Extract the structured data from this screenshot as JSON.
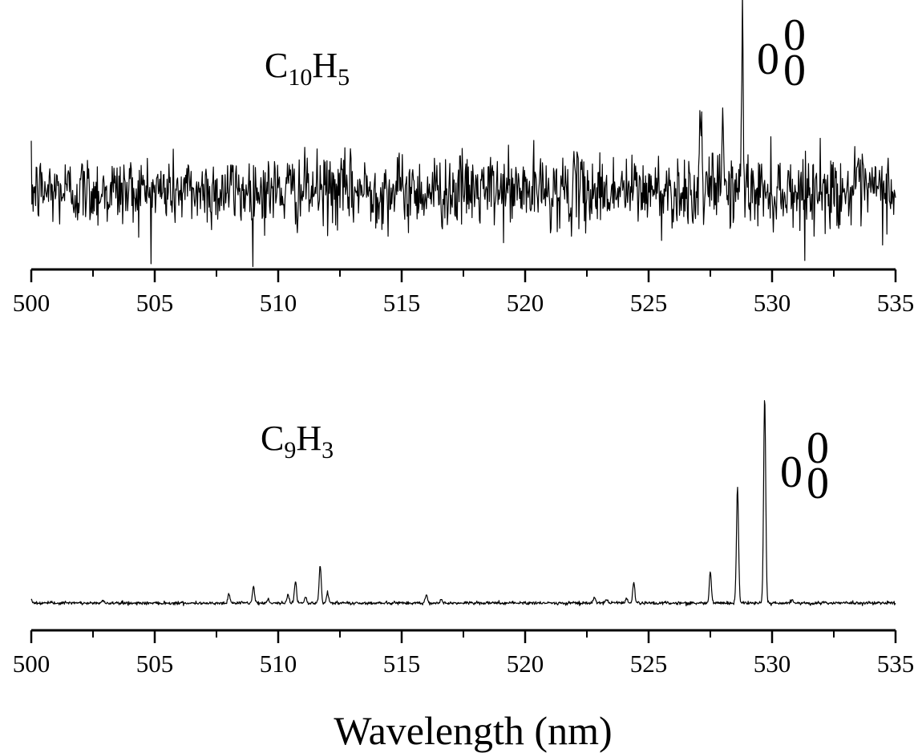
{
  "chart_data": [
    {
      "type": "line",
      "panel": "top",
      "species_label": {
        "base1": "C",
        "sub1": "10",
        "base2": "H",
        "sub2": "5"
      },
      "band_label": {
        "main": "0",
        "sup": "0",
        "sub": "0"
      },
      "xlim": [
        500,
        535
      ],
      "xticks": [
        500,
        505,
        510,
        515,
        520,
        525,
        530,
        535
      ],
      "xtick_labels": [
        "500",
        "505",
        "510",
        "515",
        "520",
        "525",
        "530",
        "535"
      ],
      "grid": false,
      "baseline": 0.0,
      "noise_level": 0.18,
      "peaks": [
        {
          "x": 527.1,
          "height": 0.85
        },
        {
          "x": 528.0,
          "height": 1.05
        },
        {
          "x": 528.8,
          "height": 1.8
        }
      ]
    },
    {
      "type": "line",
      "panel": "bottom",
      "species_label": {
        "base1": "C",
        "sub1": "9",
        "base2": "H",
        "sub2": "3"
      },
      "band_label": {
        "main": "0",
        "sup": "0",
        "sub": "0"
      },
      "xlim": [
        500,
        535
      ],
      "xticks": [
        500,
        505,
        510,
        515,
        520,
        525,
        530,
        535
      ],
      "xtick_labels": [
        "500",
        "505",
        "510",
        "515",
        "520",
        "525",
        "530",
        "535"
      ],
      "grid": false,
      "baseline": 0.0,
      "noise_level": 0.004,
      "peaks": [
        {
          "x": 500.0,
          "height": 0.02
        },
        {
          "x": 502.9,
          "height": 0.01
        },
        {
          "x": 508.0,
          "height": 0.04
        },
        {
          "x": 509.0,
          "height": 0.08
        },
        {
          "x": 509.6,
          "height": 0.02
        },
        {
          "x": 510.4,
          "height": 0.04
        },
        {
          "x": 510.7,
          "height": 0.11
        },
        {
          "x": 511.1,
          "height": 0.03
        },
        {
          "x": 511.7,
          "height": 0.18
        },
        {
          "x": 512.0,
          "height": 0.05
        },
        {
          "x": 516.0,
          "height": 0.04
        },
        {
          "x": 516.6,
          "height": 0.02
        },
        {
          "x": 522.8,
          "height": 0.03
        },
        {
          "x": 523.3,
          "height": 0.02
        },
        {
          "x": 524.1,
          "height": 0.02
        },
        {
          "x": 524.4,
          "height": 0.1
        },
        {
          "x": 527.5,
          "height": 0.15
        },
        {
          "x": 528.6,
          "height": 0.56
        },
        {
          "x": 529.7,
          "height": 1.0
        },
        {
          "x": 530.8,
          "height": 0.02
        }
      ]
    }
  ],
  "xlabel": "Wavelength (nm)"
}
